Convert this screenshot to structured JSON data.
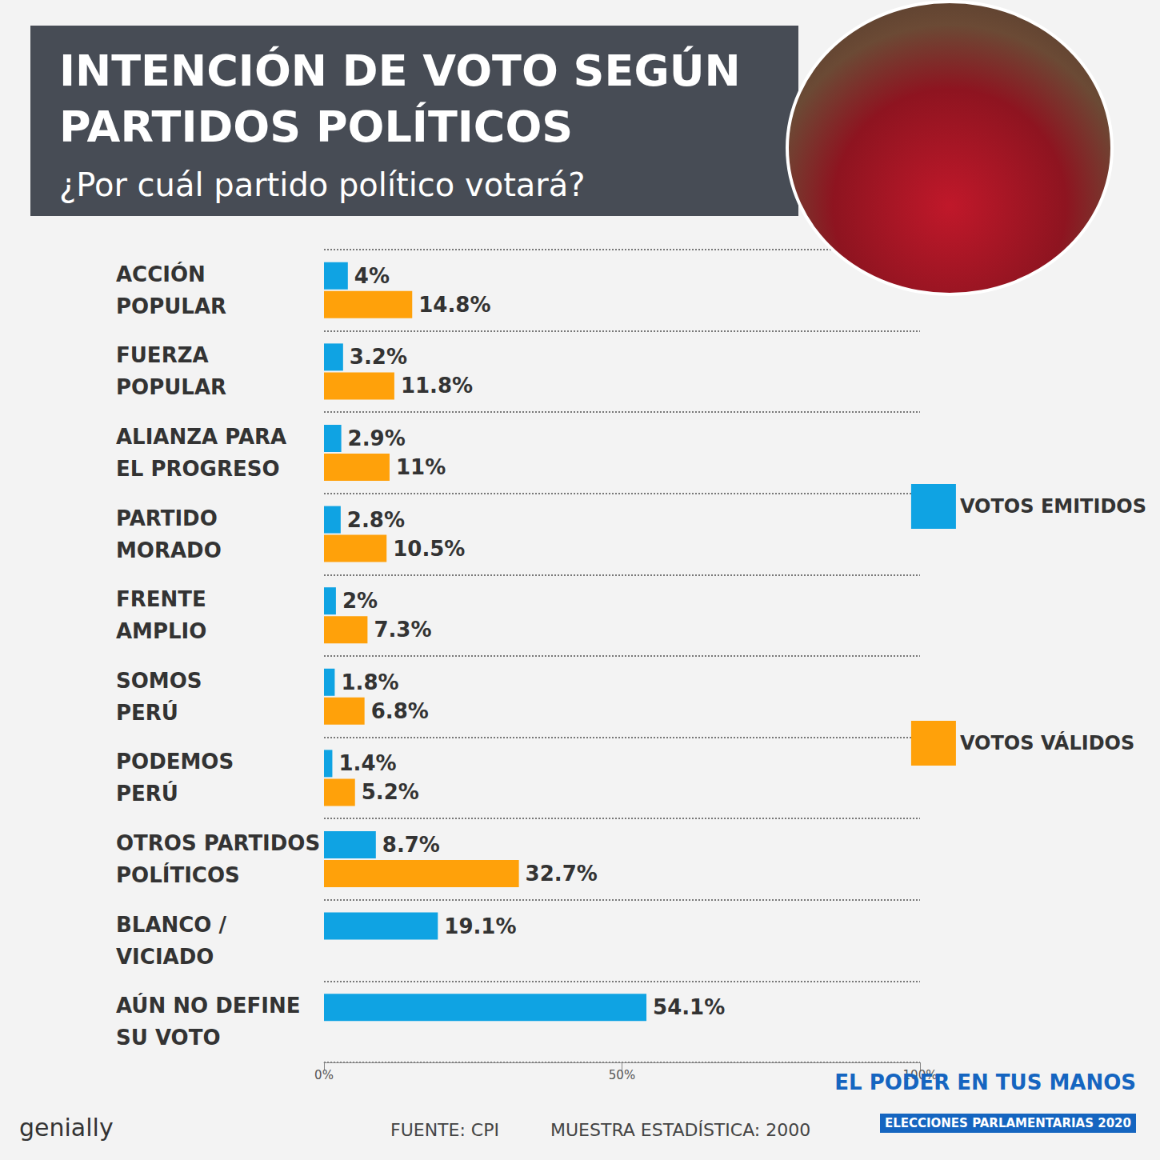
{
  "chart_data": {
    "type": "bar",
    "title": "INTENCIÓN DE VOTO SEGÚN PARTIDOS POLÍTICOS",
    "subtitle": "¿Por cuál partido político votará?",
    "source": "FUENTE: CPI",
    "note": "MUESTRA ESTADÍSTICA: 2000",
    "branding": [
      "EL PODER EN TUS MANOS",
      "ELECCIONES PARLAMENTARIAS 2020",
      "genially"
    ],
    "orientation": "horizontal",
    "categories": [
      "ACCIÓN POPULAR",
      "FUERZA POPULAR",
      "ALIANZA PARA EL PROGRESO",
      "PARTIDO MORADO",
      "FRENTE AMPLIO",
      "SOMOS PERÚ",
      "PODEMOS PERÚ",
      "OTROS PARTIDOS POLÍTICOS",
      "BLANCO / VICIADO",
      "AÚN NO DEFINE SU VOTO"
    ],
    "series": [
      {
        "name": "VOTOS EMITIDOS",
        "color": "#0fa3e3",
        "values": [
          4,
          3.2,
          2.9,
          2.8,
          2,
          1.8,
          1.4,
          8.7,
          19.1,
          54.1
        ],
        "value_labels": [
          "4%",
          "3.2%",
          "2.9%",
          "2.8%",
          "2%",
          "1.8%",
          "1.4%",
          "8.7%",
          "19.1%",
          "54.1%"
        ]
      },
      {
        "name": "VOTOS VÁLIDOS",
        "color": "#ffa10a",
        "values": [
          14.8,
          11.8,
          11,
          10.5,
          7.3,
          6.8,
          5.2,
          32.7,
          null,
          null
        ],
        "value_labels": [
          "14.8%",
          "11.8%",
          "11%",
          "10.5%",
          "7.3%",
          "6.8%",
          "5.2%",
          "32.7%",
          null,
          null
        ]
      }
    ],
    "xlim": [
      0,
      100
    ],
    "xticks": [
      {
        "value": 0,
        "label": "0%"
      },
      {
        "value": 50,
        "label": "50%"
      },
      {
        "value": 100,
        "label": "100%"
      }
    ],
    "data_labels": true,
    "legend": "right",
    "grid": true
  }
}
